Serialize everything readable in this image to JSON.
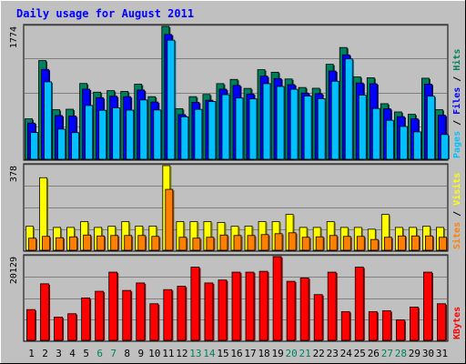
{
  "title": "Daily usage for August 2011",
  "colors": {
    "background": "#c0c0c0",
    "panel": "#c0c0c0",
    "title": "#0000ff",
    "hits": "#00805c",
    "files": "#0000ff",
    "pages": "#00c0ff",
    "sites": "#ff8000",
    "visits": "#ffff00",
    "kbytes": "#ff0000",
    "weekend_label": "#00805c",
    "weekday_label": "#000000"
  },
  "legends": {
    "top": [
      {
        "key": "pages",
        "text": "Pages"
      },
      {
        "key": "sep1",
        "text": " / "
      },
      {
        "key": "files",
        "text": "Files"
      },
      {
        "key": "sep2",
        "text": " / "
      },
      {
        "key": "hits",
        "text": "Hits"
      }
    ],
    "middle": [
      {
        "key": "sites",
        "text": "Sites"
      },
      {
        "key": "sep",
        "text": " / "
      },
      {
        "key": "visits",
        "text": "Visits"
      }
    ],
    "bottom": [
      {
        "key": "kbytes",
        "text": "KBytes"
      }
    ]
  },
  "chart_data": {
    "type": "bar",
    "title": "Daily usage for August 2011",
    "categories": [
      "1",
      "2",
      "3",
      "4",
      "5",
      "6",
      "7",
      "8",
      "9",
      "10",
      "11",
      "12",
      "13",
      "14",
      "15",
      "16",
      "17",
      "18",
      "19",
      "20",
      "21",
      "22",
      "23",
      "24",
      "25",
      "26",
      "27",
      "28",
      "29",
      "30",
      "31"
    ],
    "weekend_days": [
      "6",
      "7",
      "13",
      "14",
      "20",
      "21",
      "27",
      "28"
    ],
    "panels": [
      {
        "name": "hits-files-pages",
        "y_max_label": "1774",
        "ylim": [
          0,
          1774
        ],
        "series": [
          {
            "name": "Hits",
            "color_key": "hits",
            "values": [
              540,
              1318,
              662,
              668,
              1012,
              896,
              916,
              906,
              1002,
              836,
              1774,
              676,
              836,
              866,
              1010,
              1066,
              946,
              1196,
              1162,
              1072,
              958,
              948,
              1268,
              1492,
              1100,
              1088,
              742,
              632,
              600,
              1082,
              662
            ]
          },
          {
            "name": "Files",
            "color_key": "files",
            "values": [
              484,
              1200,
              584,
              578,
              936,
              822,
              842,
              836,
              924,
              764,
              1666,
              596,
              760,
              788,
              936,
              986,
              872,
              1110,
              1078,
              996,
              884,
              876,
              1178,
              1394,
              1018,
              1008,
              674,
              570,
              540,
              1004,
              588
            ]
          },
          {
            "name": "Pages",
            "color_key": "pages",
            "values": [
              358,
              1034,
              402,
              356,
              718,
              654,
              686,
              656,
              792,
              658,
              1590,
              566,
              666,
              770,
              862,
              818,
              806,
              1010,
              972,
              934,
              844,
              808,
              1042,
              1340,
              856,
              678,
              520,
              438,
              366,
              842,
              330
            ]
          }
        ]
      },
      {
        "name": "sites-visits",
        "y_max_label": "378",
        "ylim": [
          0,
          378
        ],
        "series": [
          {
            "name": "Visits",
            "color_key": "visits",
            "values": [
              107,
              324,
              102,
              102,
              128,
              102,
              107,
              128,
              108,
              108,
              378,
              128,
              128,
              128,
              124,
              107,
              108,
              128,
              128,
              160,
              102,
              102,
              128,
              102,
              102,
              94,
              160,
              102,
              102,
              107,
              102
            ]
          },
          {
            "name": "Sites",
            "color_key": "sites",
            "values": [
              54,
              62,
              56,
              60,
              68,
              64,
              66,
              66,
              66,
              62,
              272,
              58,
              54,
              58,
              68,
              66,
              66,
              70,
              74,
              78,
              58,
              60,
              66,
              62,
              62,
              48,
              58,
              64,
              64,
              64,
              58
            ]
          }
        ]
      },
      {
        "name": "kbytes",
        "y_max_label": "20129",
        "ylim": [
          0,
          20129
        ],
        "series": [
          {
            "name": "KBytes",
            "color_key": "kbytes",
            "values": [
              7400,
              13600,
              5600,
              6400,
              10200,
              11800,
              16400,
              12000,
              13800,
              8800,
              12200,
              13000,
              17600,
              13800,
              14500,
              16400,
              16400,
              16600,
              20129,
              14200,
              15000,
              11000,
              16400,
              6900,
              17600,
              6900,
              7100,
              4900,
              8000,
              16400,
              8800
            ]
          }
        ]
      }
    ]
  }
}
